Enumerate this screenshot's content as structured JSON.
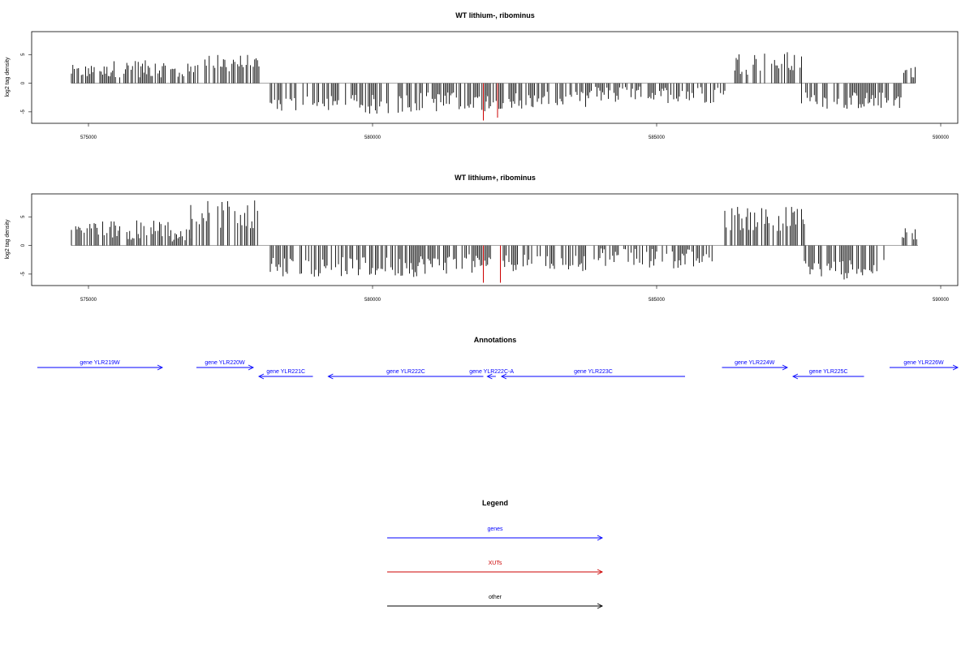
{
  "chart_data": [
    {
      "type": "bar",
      "title": "WT lithium-, ribominus",
      "ylabel": "log2 tag density",
      "xlim": [
        574000,
        590300
      ],
      "ylim": [
        -7,
        9
      ],
      "x_ticks": [
        575000,
        580000,
        585000,
        590000
      ],
      "y_ticks": [
        -5,
        0,
        5
      ],
      "grid": false,
      "colors": {
        "bars": "#000000",
        "highlight": "#cc0000",
        "baseline": "#999999"
      },
      "series": [
        {
          "segments": [
            {
              "x_start": 574700,
              "x_end": 575400,
              "min": 1.0,
              "max": 3.2
            },
            {
              "x_start": 575400,
              "x_end": 576300,
              "min": 1.0,
              "max": 4.0
            },
            {
              "x_start": 576300,
              "x_end": 576850,
              "min": 0.5,
              "max": 3.5
            },
            {
              "x_start": 576850,
              "x_end": 578000,
              "min": 2.0,
              "max": 5.0
            },
            {
              "x_start": 578200,
              "x_end": 580500,
              "min": -5.5,
              "max": -2.0
            },
            {
              "x_start": 580500,
              "x_end": 582000,
              "min": -5.0,
              "max": -1.5
            },
            {
              "x_start": 582000,
              "x_end": 583800,
              "min": -4.5,
              "max": -1.5
            },
            {
              "x_start": 583800,
              "x_end": 586200,
              "min": -3.5,
              "max": -0.5
            },
            {
              "x_start": 586300,
              "x_end": 587550,
              "min": 1.5,
              "max": 5.5
            },
            {
              "x_start": 587550,
              "x_end": 589300,
              "min": -4.5,
              "max": -1.5
            },
            {
              "x_start": 589350,
              "x_end": 589550,
              "min": 1.0,
              "max": 3.0
            }
          ],
          "highlight_bars": [
            {
              "x": 581950,
              "y": -6.5
            },
            {
              "x": 582200,
              "y": -6.0
            }
          ]
        }
      ]
    },
    {
      "type": "bar",
      "title": "WT lithium+, ribominus",
      "ylabel": "log2 tag density",
      "xlim": [
        574000,
        590300
      ],
      "ylim": [
        -7,
        9
      ],
      "x_ticks": [
        575000,
        580000,
        585000,
        590000
      ],
      "y_ticks": [
        -5,
        0,
        5
      ],
      "grid": false,
      "colors": {
        "bars": "#000000",
        "highlight": "#cc0000",
        "baseline": "#999999"
      },
      "series": [
        {
          "segments": [
            {
              "x_start": 574700,
              "x_end": 576400,
              "min": 1.0,
              "max": 4.5
            },
            {
              "x_start": 576400,
              "x_end": 576800,
              "min": 0.5,
              "max": 3.0
            },
            {
              "x_start": 576800,
              "x_end": 578000,
              "min": 3.0,
              "max": 8.0
            },
            {
              "x_start": 578200,
              "x_end": 580800,
              "min": -5.5,
              "max": -2.0
            },
            {
              "x_start": 580800,
              "x_end": 582000,
              "min": -5.0,
              "max": -1.5
            },
            {
              "x_start": 582000,
              "x_end": 584000,
              "min": -4.5,
              "max": -1.5
            },
            {
              "x_start": 584000,
              "x_end": 586000,
              "min": -4.0,
              "max": -0.5
            },
            {
              "x_start": 586200,
              "x_end": 587600,
              "min": 2.5,
              "max": 7.0
            },
            {
              "x_start": 587600,
              "x_end": 589000,
              "min": -6.0,
              "max": -2.5
            },
            {
              "x_start": 589300,
              "x_end": 589600,
              "min": 1.0,
              "max": 3.0
            }
          ],
          "highlight_bars": [
            {
              "x": 581950,
              "y": -6.5
            },
            {
              "x": 582250,
              "y": -6.5
            }
          ]
        }
      ]
    }
  ],
  "annotations": {
    "title": "Annotations",
    "xlim": [
      574000,
      590300
    ],
    "genes": [
      {
        "label": "gene YLR219W",
        "start": 574100,
        "end": 576300,
        "strand": "+",
        "row": 0,
        "color": "#0000ff"
      },
      {
        "label": "gene YLR220W",
        "start": 576900,
        "end": 577900,
        "strand": "+",
        "row": 0,
        "color": "#0000ff"
      },
      {
        "label": "gene YLR221C",
        "start": 578000,
        "end": 578950,
        "strand": "-",
        "row": 1,
        "color": "#0000ff"
      },
      {
        "label": "gene YLR222C",
        "start": 579220,
        "end": 581950,
        "strand": "-",
        "row": 1,
        "color": "#0000ff"
      },
      {
        "label": "gene YLR222C-A",
        "start": 582020,
        "end": 582170,
        "strand": "-",
        "row": 1,
        "color": "#0000ff"
      },
      {
        "label": "gene YLR223C",
        "start": 582270,
        "end": 585500,
        "strand": "-",
        "row": 1,
        "color": "#0000ff"
      },
      {
        "label": "gene YLR224W",
        "start": 586150,
        "end": 587300,
        "strand": "+",
        "row": 0,
        "color": "#0000ff"
      },
      {
        "label": "gene YLR225C",
        "start": 587400,
        "end": 588650,
        "strand": "-",
        "row": 1,
        "color": "#0000ff"
      },
      {
        "label": "gene YLR226W",
        "start": 589100,
        "end": 590300,
        "strand": "+",
        "row": 0,
        "color": "#0000ff"
      }
    ]
  },
  "legend": {
    "title": "Legend",
    "items": [
      {
        "label": "genes",
        "color": "#0000ff"
      },
      {
        "label": "XUTs",
        "color": "#cc0000"
      },
      {
        "label": "other",
        "color": "#000000"
      }
    ]
  }
}
